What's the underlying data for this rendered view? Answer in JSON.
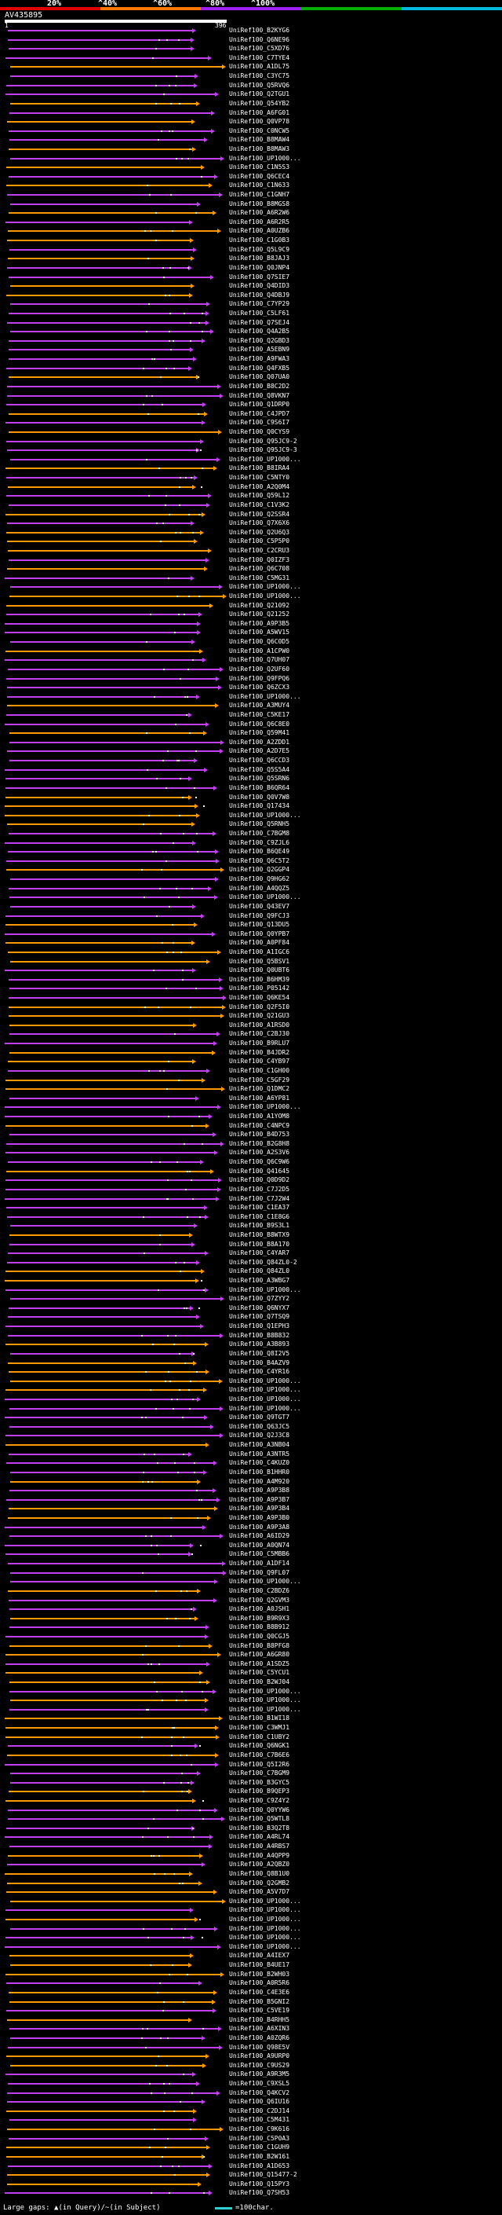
{
  "legend": {
    "labels": [
      "20%",
      "^40%",
      "^60%",
      "^80%",
      "^100%"
    ],
    "colors": [
      "#e00000",
      "#ff7700",
      "#a020f0",
      "#00b000",
      "#00bbdd"
    ]
  },
  "query": {
    "name": "AV435895",
    "start": "1",
    "end": "396"
  },
  "palette": {
    "purple": "#c040f0",
    "orange": "#ff9900",
    "white": "#ffffff"
  },
  "hits": [
    "UniRef100_B2KYG6",
    "UniRef100_Q6NE96",
    "UniRef100_C5XD76",
    "UniRef100_C7TYE4",
    "UniRef100_A1DL75",
    "UniRef100_C3YC75",
    "UniRef100_Q5RVQ6",
    "UniRef100_Q2TGU1",
    "UniRef100_Q54YB2",
    "UniRef100_A6FG01",
    "UniRef100_Q0VP78",
    "UniRef100_C0NCW5",
    "UniRef100_B8MAW4",
    "UniRef100_B8MAW3",
    "UniRef100_UP1000...",
    "UniRef100_C1N5S3",
    "UniRef100_Q6CEC4",
    "UniRef100_C1N633",
    "UniRef100_C1GNH7",
    "UniRef100_B8MGS8",
    "UniRef100_A6R2W6",
    "UniRef100_A6R2R5",
    "UniRef100_A0UZB6",
    "UniRef100_C1G0B3",
    "UniRef100_Q5L9C9",
    "UniRef100_B8JAJ3",
    "UniRef100_Q0JNP4",
    "UniRef100_Q7SIE7",
    "UniRef100_Q4DID3",
    "UniRef100_Q4DBJ9",
    "UniRef100_C7YP29",
    "UniRef100_C5LF61",
    "UniRef100_Q7SEJ4",
    "UniRef100_Q4A2B5",
    "UniRef100_Q2GBD3",
    "UniRef100_A5EBN9",
    "UniRef100_A9FWA3",
    "UniRef100_Q4FXB5",
    "UniRef100_Q07UA0",
    "UniRef100_B8C2D2",
    "UniRef100_Q8VKN7",
    "UniRef100_Q1DRP0",
    "UniRef100_C4JPD7",
    "UniRef100_C9S6I7",
    "UniRef100_Q0CYS9",
    "UniRef100_Q95JC9-2",
    "UniRef100_Q95JC9-3",
    "UniRef100_UP1000...",
    "UniRef100_B8IRA4",
    "UniRef100_C5NTY0",
    "UniRef100_A2Q0M4",
    "UniRef100_Q59L12",
    "UniRef100_C1V3K2",
    "UniRef100_Q2SSR4",
    "UniRef100_Q7X6X6",
    "UniRef100_Q2U6Q3",
    "UniRef100_C5P5P0",
    "UniRef100_C2CRU3",
    "UniRef100_Q0IZF3",
    "UniRef100_Q6C708",
    "UniRef100_C5MG31",
    "UniRef100_UP1000...",
    "UniRef100_UP1000...",
    "UniRef100_Q21092",
    "UniRef100_Q21252",
    "UniRef100_A9P3B5",
    "UniRef100_A5WV15",
    "UniRef100_Q6C0D5",
    "UniRef100_A1CPW0",
    "UniRef100_Q7UH07",
    "UniRef100_Q2UF60",
    "UniRef100_Q9FPQ6",
    "UniRef100_Q6ZCX3",
    "UniRef100_UP1000...",
    "UniRef100_A3MUY4",
    "UniRef100_C5KE17",
    "UniRef100_Q6C8E0",
    "UniRef100_Q59M41",
    "UniRef100_A2ZDD1",
    "UniRef100_A2D7E5",
    "UniRef100_Q6CCD3",
    "UniRef100_Q5S5A4",
    "UniRef100_Q5SRN6",
    "UniRef100_B6QR64",
    "UniRef100_Q0V7W8",
    "UniRef100_Q17434",
    "UniRef100_UP1000...",
    "UniRef100_Q5RNH5",
    "UniRef100_C7BGM8",
    "UniRef100_C9ZJL6",
    "UniRef100_B6QE49",
    "UniRef100_Q6C5T2",
    "UniRef100_Q2GGP4",
    "UniRef100_Q9HG62",
    "UniRef100_A4QQZ5",
    "UniRef100_UP1000...",
    "UniRef100_Q43EV7",
    "UniRef100_Q9FCJ3",
    "UniRef100_Q13DU5",
    "UniRef100_Q0YPB7",
    "UniRef100_A0PF84",
    "UniRef100_A1IGC6",
    "UniRef100_Q5BSV1",
    "UniRef100_Q0UBT6",
    "UniRef100_B6HM39",
    "UniRef100_P05142",
    "UniRef100_Q6KE54",
    "UniRef100_Q2F5I0",
    "UniRef100_Q21GU3",
    "UniRef100_A1RSD0",
    "UniRef100_C2BJ30",
    "UniRef100_B9RLU7",
    "UniRef100_B4JDR2",
    "UniRef100_C4YB97",
    "UniRef100_C1GH00",
    "UniRef100_C5GF29",
    "UniRef100_Q1DMC2",
    "UniRef100_A6YP81",
    "UniRef100_UP1000...",
    "UniRef100_A1YOM8",
    "UniRef100_C4NPC9",
    "UniRef100_B4D753",
    "UniRef100_B2G8H8",
    "UniRef100_A2S3V6",
    "UniRef100_Q6C9W6",
    "UniRef100_Q41645",
    "UniRef100_Q0D9D2",
    "UniRef100_C7J2D5",
    "UniRef100_C7J2W4",
    "UniRef100_C1EA37",
    "UniRef100_C1E8G6",
    "UniRef100_B9S3L1",
    "UniRef100_B8WTX9",
    "UniRef100_B8A170",
    "UniRef100_C4YAR7",
    "UniRef100_Q84ZL0-2",
    "UniRef100_Q84ZL0",
    "UniRef100_A3WBG7",
    "UniRef100_UP1000...",
    "UniRef100_Q7ZYY2",
    "UniRef100_Q6NYX7",
    "UniRef100_Q7TSQ9",
    "UniRef100_Q1EPH3",
    "UniRef100_B8B832",
    "UniRef100_A3B893",
    "UniRef100_Q8I2V5",
    "UniRef100_B4AZV9",
    "UniRef100_C4YR16",
    "UniRef100_UP1000...",
    "UniRef100_UP1000...",
    "UniRef100_UP1000...",
    "UniRef100_UP1000...",
    "UniRef100_Q9TGT7",
    "UniRef100_Q63JC5",
    "UniRef100_Q2J3C8",
    "UniRef100_A3NB04",
    "UniRef100_A3NTR5",
    "UniRef100_C4KUZ0",
    "UniRef100_B1HHR0",
    "UniRef100_A4M920",
    "UniRef100_A9P3B8",
    "UniRef100_A9P3B7",
    "UniRef100_A9P3B4",
    "UniRef100_A9P3B0",
    "UniRef100_A9P3A8",
    "UniRef100_A6ID29",
    "UniRef100_A0QN74",
    "UniRef100_C5MBB6",
    "UniRef100_A1DF14",
    "UniRef100_Q9FL07",
    "UniRef100_UP1000...",
    "UniRef100_C2BDZ6",
    "UniRef100_Q2GVM3",
    "UniRef100_A0JSH1",
    "UniRef100_B9R9X3",
    "UniRef100_B8B912",
    "UniRef100_Q0CGJ5",
    "UniRef100_B8PFG8",
    "UniRef100_A6GR80",
    "UniRef100_A1SDZ5",
    "UniRef100_C5YCU1",
    "UniRef100_B2WJ04",
    "UniRef100_UP1000...",
    "UniRef100_UP1000...",
    "UniRef100_UP1000...",
    "UniRef100_B1WI18",
    "UniRef100_C3WMJ1",
    "UniRef100_C1UBY2",
    "UniRef100_Q6NGK1",
    "UniRef100_C7B6E6",
    "UniRef100_Q5I2R6",
    "UniRef100_C7BGM9",
    "UniRef100_B3GYC5",
    "UniRef100_B9QEP3",
    "UniRef100_C9Z4Y2",
    "UniRef100_Q0YYW6",
    "UniRef100_Q5WTL8",
    "UniRef100_B3Q2T8",
    "UniRef100_A4RL74",
    "UniRef100_A4RBS7",
    "UniRef100_A4QPP9",
    "UniRef100_A2QBZ0",
    "UniRef100_Q8B1U0",
    "UniRef100_Q2GMB2",
    "UniRef100_A5V7D7",
    "UniRef100_UP1000...",
    "UniRef100_UP1000...",
    "UniRef100_UP1000...",
    "UniRef100_UP1000...",
    "UniRef100_UP1000...",
    "UniRef100_UP1000...",
    "UniRef100_A4IEX7",
    "UniRef100_B4UE17",
    "UniRef100_B2WH03",
    "UniRef100_A0R5R6",
    "UniRef100_C4E3E6",
    "UniRef100_B5GNI2",
    "UniRef100_C5VE19",
    "UniRef100_B4RHH5",
    "UniRef100_A6XIN3",
    "UniRef100_A0ZQR6",
    "UniRef100_Q98E5V",
    "UniRef100_A9URP0",
    "UniRef100_C9US29",
    "UniRef100_A9R3M5",
    "UniRef100_C9XSL5",
    "UniRef100_Q4KCV2",
    "UniRef100_Q6IU16",
    "UniRef100_C2DJ14",
    "UniRef100_C5M431",
    "UniRef100_C9K616",
    "UniRef100_C5P0A3",
    "UniRef100_C1GUH9",
    "UniRef100_B2W161",
    "UniRef100_A1D653",
    "UniRef100_Q15477-2",
    "UniRef100_Q15PY3",
    "UniRef100_Q7SH53"
  ],
  "footer": {
    "text": "Large gaps: ▲(in Query)/~(in Subject)",
    "scale_label": "=100char."
  }
}
